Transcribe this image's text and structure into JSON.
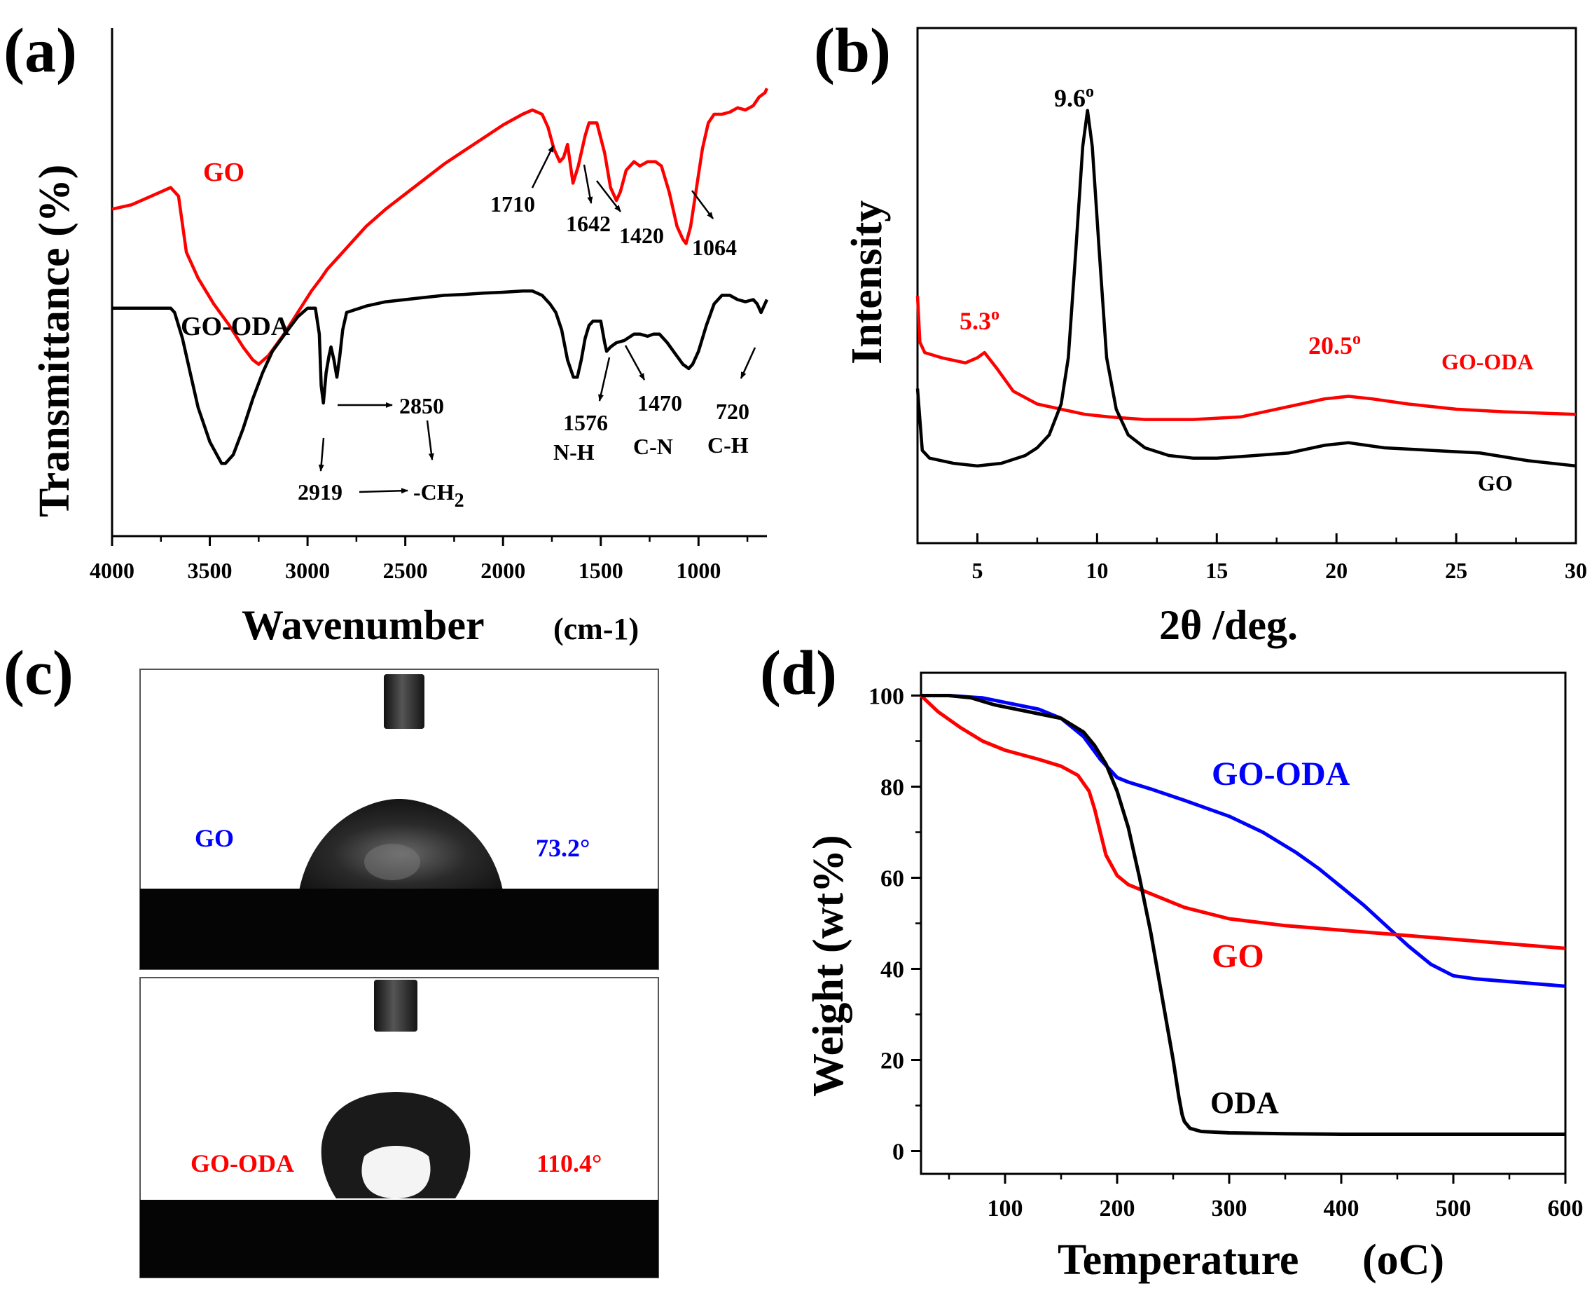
{
  "figure": {
    "panels": [
      "(a)",
      "(b)",
      "(c)",
      "(d)"
    ]
  },
  "chart_data": [
    {
      "panel": "(a)",
      "type": "line",
      "xlabel": "Wavenumber",
      "xlabel_unit": "(cm-1)",
      "ylabel": "Transmittance (%)",
      "xlim": [
        4000,
        650
      ],
      "x_reversed": true,
      "ylim": [
        0,
        100
      ],
      "y_ticks_shown": false,
      "x_ticks": [
        "4000",
        "3500",
        "3000",
        "2500",
        "2000",
        "1500",
        "1000"
      ],
      "x_tick_values": [
        4000,
        3500,
        3000,
        2500,
        2000,
        1500,
        1000
      ],
      "series": [
        {
          "name": "GO",
          "color": "#ff0000",
          "x": [
            4000,
            3900,
            3800,
            3700,
            3660,
            3620,
            3560,
            3480,
            3400,
            3330,
            3280,
            3250,
            3200,
            3120,
            3050,
            2980,
            2930,
            2900,
            2860,
            2800,
            2700,
            2600,
            2500,
            2400,
            2300,
            2200,
            2100,
            2000,
            1900,
            1850,
            1800,
            1770,
            1740,
            1710,
            1690,
            1670,
            1642,
            1615,
            1580,
            1560,
            1520,
            1480,
            1450,
            1420,
            1400,
            1370,
            1330,
            1300,
            1260,
            1220,
            1190,
            1150,
            1110,
            1080,
            1064,
            1040,
            1010,
            980,
            950,
            920,
            880,
            840,
            800,
            760,
            720,
            690,
            660,
            650
          ],
          "y": [
            71,
            72,
            74,
            76,
            74,
            61,
            55,
            49,
            44,
            39,
            36,
            35,
            37,
            42,
            47,
            52,
            55,
            57,
            59,
            62,
            67,
            71,
            74.5,
            78,
            81.5,
            84.5,
            87.5,
            90.5,
            93,
            94,
            93,
            90,
            85,
            82,
            83,
            86,
            77,
            81,
            88,
            91,
            91,
            84,
            76,
            73,
            75,
            80,
            82,
            81,
            82,
            82,
            81,
            75,
            67,
            64,
            63,
            67,
            76,
            85,
            91,
            93,
            93,
            93.5,
            94.5,
            94,
            95,
            97,
            98,
            99
          ]
        },
        {
          "name": "GO-ODA",
          "color": "#000000",
          "x": [
            4000,
            3900,
            3800,
            3700,
            3680,
            3640,
            3600,
            3560,
            3500,
            3440,
            3420,
            3380,
            3330,
            3280,
            3230,
            3180,
            3100,
            3050,
            3000,
            2960,
            2940,
            2930,
            2919,
            2905,
            2890,
            2880,
            2865,
            2850,
            2835,
            2820,
            2800,
            2700,
            2600,
            2500,
            2400,
            2300,
            2200,
            2100,
            2000,
            1900,
            1850,
            1800,
            1760,
            1730,
            1700,
            1670,
            1640,
            1620,
            1600,
            1580,
            1560,
            1540,
            1520,
            1500,
            1480,
            1470,
            1450,
            1420,
            1380,
            1330,
            1300,
            1260,
            1230,
            1200,
            1160,
            1120,
            1080,
            1050,
            1030,
            1000,
            960,
            920,
            880,
            840,
            800,
            760,
            720,
            700,
            680,
            660,
            650
          ],
          "y": [
            48,
            48,
            48,
            48,
            47,
            41,
            33,
            25,
            17,
            12,
            12,
            14,
            20,
            27,
            33,
            38,
            43,
            46,
            48,
            48,
            42,
            30,
            26,
            33,
            37,
            39,
            36,
            32,
            37,
            43,
            47,
            48.5,
            49.5,
            50,
            50.5,
            51,
            51.2,
            51.5,
            51.7,
            52,
            52,
            51,
            49,
            47,
            43,
            36,
            32,
            32,
            36,
            41,
            44,
            45,
            45,
            45,
            40,
            38,
            39,
            40,
            40.5,
            42,
            42,
            41.5,
            42,
            42,
            40,
            37.5,
            35,
            34,
            35,
            38,
            44,
            49,
            51,
            51,
            50,
            49.5,
            50,
            49,
            47,
            49,
            50
          ]
        }
      ],
      "series_labels": [
        {
          "text": "GO",
          "color": "#ff0000"
        },
        {
          "text": "GO-ODA",
          "color": "#000000"
        }
      ],
      "annotations": [
        {
          "text": "1710",
          "x": 1710
        },
        {
          "text": "1642",
          "x": 1642
        },
        {
          "text": "1420",
          "x": 1420
        },
        {
          "text": "1064",
          "x": 1064
        },
        {
          "text": "2850",
          "x": 2850
        },
        {
          "text": "2919",
          "x": 2919
        },
        {
          "text": "-CH",
          "sub": "2"
        },
        {
          "text": "1576",
          "x": 1576
        },
        {
          "text": "N-H"
        },
        {
          "text": "1470",
          "x": 1470
        },
        {
          "text": "C-N"
        },
        {
          "text": "720",
          "x": 720
        },
        {
          "text": "C-H"
        }
      ]
    },
    {
      "panel": "(b)",
      "type": "line",
      "xlabel": "2θ /deg.",
      "ylabel": "Intensity",
      "xlim": [
        2.5,
        30
      ],
      "ylim": [
        0,
        100
      ],
      "y_ticks_shown": false,
      "x_ticks": [
        "5",
        "10",
        "15",
        "20",
        "25",
        "30"
      ],
      "x_tick_values": [
        5,
        10,
        15,
        20,
        25,
        30
      ],
      "series": [
        {
          "name": "GO-ODA",
          "color": "#ff0000",
          "x": [
            2.5,
            2.6,
            2.8,
            3.5,
            4.5,
            5.0,
            5.3,
            5.8,
            6.5,
            7.5,
            8.5,
            9.5,
            10.5,
            12,
            14,
            16,
            18,
            19.5,
            20.5,
            21.5,
            23,
            25,
            27,
            30
          ],
          "y": [
            48,
            39,
            37,
            36,
            35,
            36,
            37,
            34,
            29.5,
            27,
            26,
            25,
            24.5,
            24,
            24,
            24.5,
            26.5,
            28,
            28.5,
            28,
            27,
            26,
            25.5,
            25
          ]
        },
        {
          "name": "GO",
          "color": "#000000",
          "x": [
            2.5,
            2.7,
            3.0,
            4.0,
            5.0,
            6.0,
            7.0,
            7.5,
            8.0,
            8.5,
            8.8,
            9.1,
            9.4,
            9.6,
            9.8,
            10.1,
            10.4,
            10.8,
            11.3,
            12,
            13,
            14,
            15,
            16,
            18,
            19.5,
            20.5,
            22,
            24,
            26,
            28,
            30
          ],
          "y": [
            30,
            18,
            16.5,
            15.5,
            15,
            15.5,
            17,
            18.5,
            21,
            27,
            36,
            56,
            77,
            84,
            77,
            56,
            36,
            26,
            21,
            18.5,
            17,
            16.5,
            16.5,
            16.8,
            17.5,
            19,
            19.5,
            18.5,
            18,
            17.5,
            16,
            15
          ]
        }
      ],
      "annotations": [
        {
          "text": "9.6",
          "sup": "o",
          "color": "#000000",
          "x": 9.6
        },
        {
          "text": "5.3",
          "sup": "o",
          "color": "#ff0000",
          "x": 5.3
        },
        {
          "text": "20.5",
          "sup": "o",
          "color": "#ff0000",
          "x": 20.5
        }
      ],
      "series_labels": [
        {
          "text": "GO-ODA",
          "color": "#ff0000"
        },
        {
          "text": "GO",
          "color": "#000000"
        }
      ]
    },
    {
      "panel": "(d)",
      "type": "line",
      "xlabel": "Temperature",
      "xlabel_unit": "(oC)",
      "ylabel": "Weight (wt%)",
      "xlim": [
        25,
        600
      ],
      "ylim": [
        -5,
        105
      ],
      "x_ticks": [
        "100",
        "200",
        "300",
        "400",
        "500",
        "600"
      ],
      "x_tick_values": [
        100,
        200,
        300,
        400,
        500,
        600
      ],
      "y_ticks": [
        "0",
        "20",
        "40",
        "60",
        "80",
        "100"
      ],
      "y_tick_values": [
        0,
        20,
        40,
        60,
        80,
        100
      ],
      "series": [
        {
          "name": "GO-ODA",
          "color": "#0000ff",
          "x": [
            25,
            50,
            80,
            100,
            130,
            150,
            170,
            185,
            200,
            210,
            230,
            260,
            300,
            330,
            360,
            380,
            400,
            420,
            440,
            460,
            480,
            500,
            520,
            550,
            580,
            600
          ],
          "y": [
            100,
            100,
            99.5,
            98.5,
            97,
            95,
            91,
            86,
            82,
            81,
            79.5,
            77,
            73.5,
            70,
            65.5,
            62,
            58,
            54,
            49.5,
            45,
            41,
            38.5,
            37.8,
            37.2,
            36.6,
            36.2
          ]
        },
        {
          "name": "GO",
          "color": "#ff0000",
          "x": [
            25,
            40,
            60,
            80,
            100,
            130,
            150,
            165,
            175,
            180,
            185,
            190,
            200,
            210,
            220,
            240,
            260,
            300,
            350,
            400,
            450,
            500,
            550,
            600
          ],
          "y": [
            100,
            96.5,
            93,
            90,
            88,
            86,
            84.5,
            82.5,
            79,
            75,
            70,
            65,
            60.5,
            58.5,
            57.5,
            55.5,
            53.5,
            51,
            49.5,
            48.5,
            47.5,
            46.5,
            45.5,
            44.5
          ]
        },
        {
          "name": "ODA",
          "color": "#000000",
          "x": [
            25,
            50,
            70,
            90,
            100,
            130,
            150,
            170,
            180,
            190,
            200,
            210,
            220,
            230,
            240,
            250,
            255,
            258,
            260,
            265,
            275,
            300,
            350,
            400,
            500,
            600
          ],
          "y": [
            100,
            100,
            99.5,
            98,
            97.5,
            96,
            95,
            92,
            89,
            85,
            79,
            71,
            60,
            48,
            34,
            20,
            12,
            8,
            6.5,
            5,
            4.3,
            4,
            3.8,
            3.7,
            3.7,
            3.7
          ]
        }
      ],
      "series_labels": [
        {
          "text": "GO-ODA",
          "color": "#0000ff"
        },
        {
          "text": "GO",
          "color": "#ff0000"
        },
        {
          "text": "ODA",
          "color": "#000000"
        }
      ]
    }
  ],
  "contact_angle": {
    "panel": "(c)",
    "images": [
      {
        "sample": "GO",
        "sample_color": "#0000ff",
        "angle": "73.2°",
        "angle_color": "#0000ff"
      },
      {
        "sample": "GO-ODA",
        "sample_color": "#ff0000",
        "angle": "110.4°",
        "angle_color": "#ff0000"
      }
    ]
  }
}
